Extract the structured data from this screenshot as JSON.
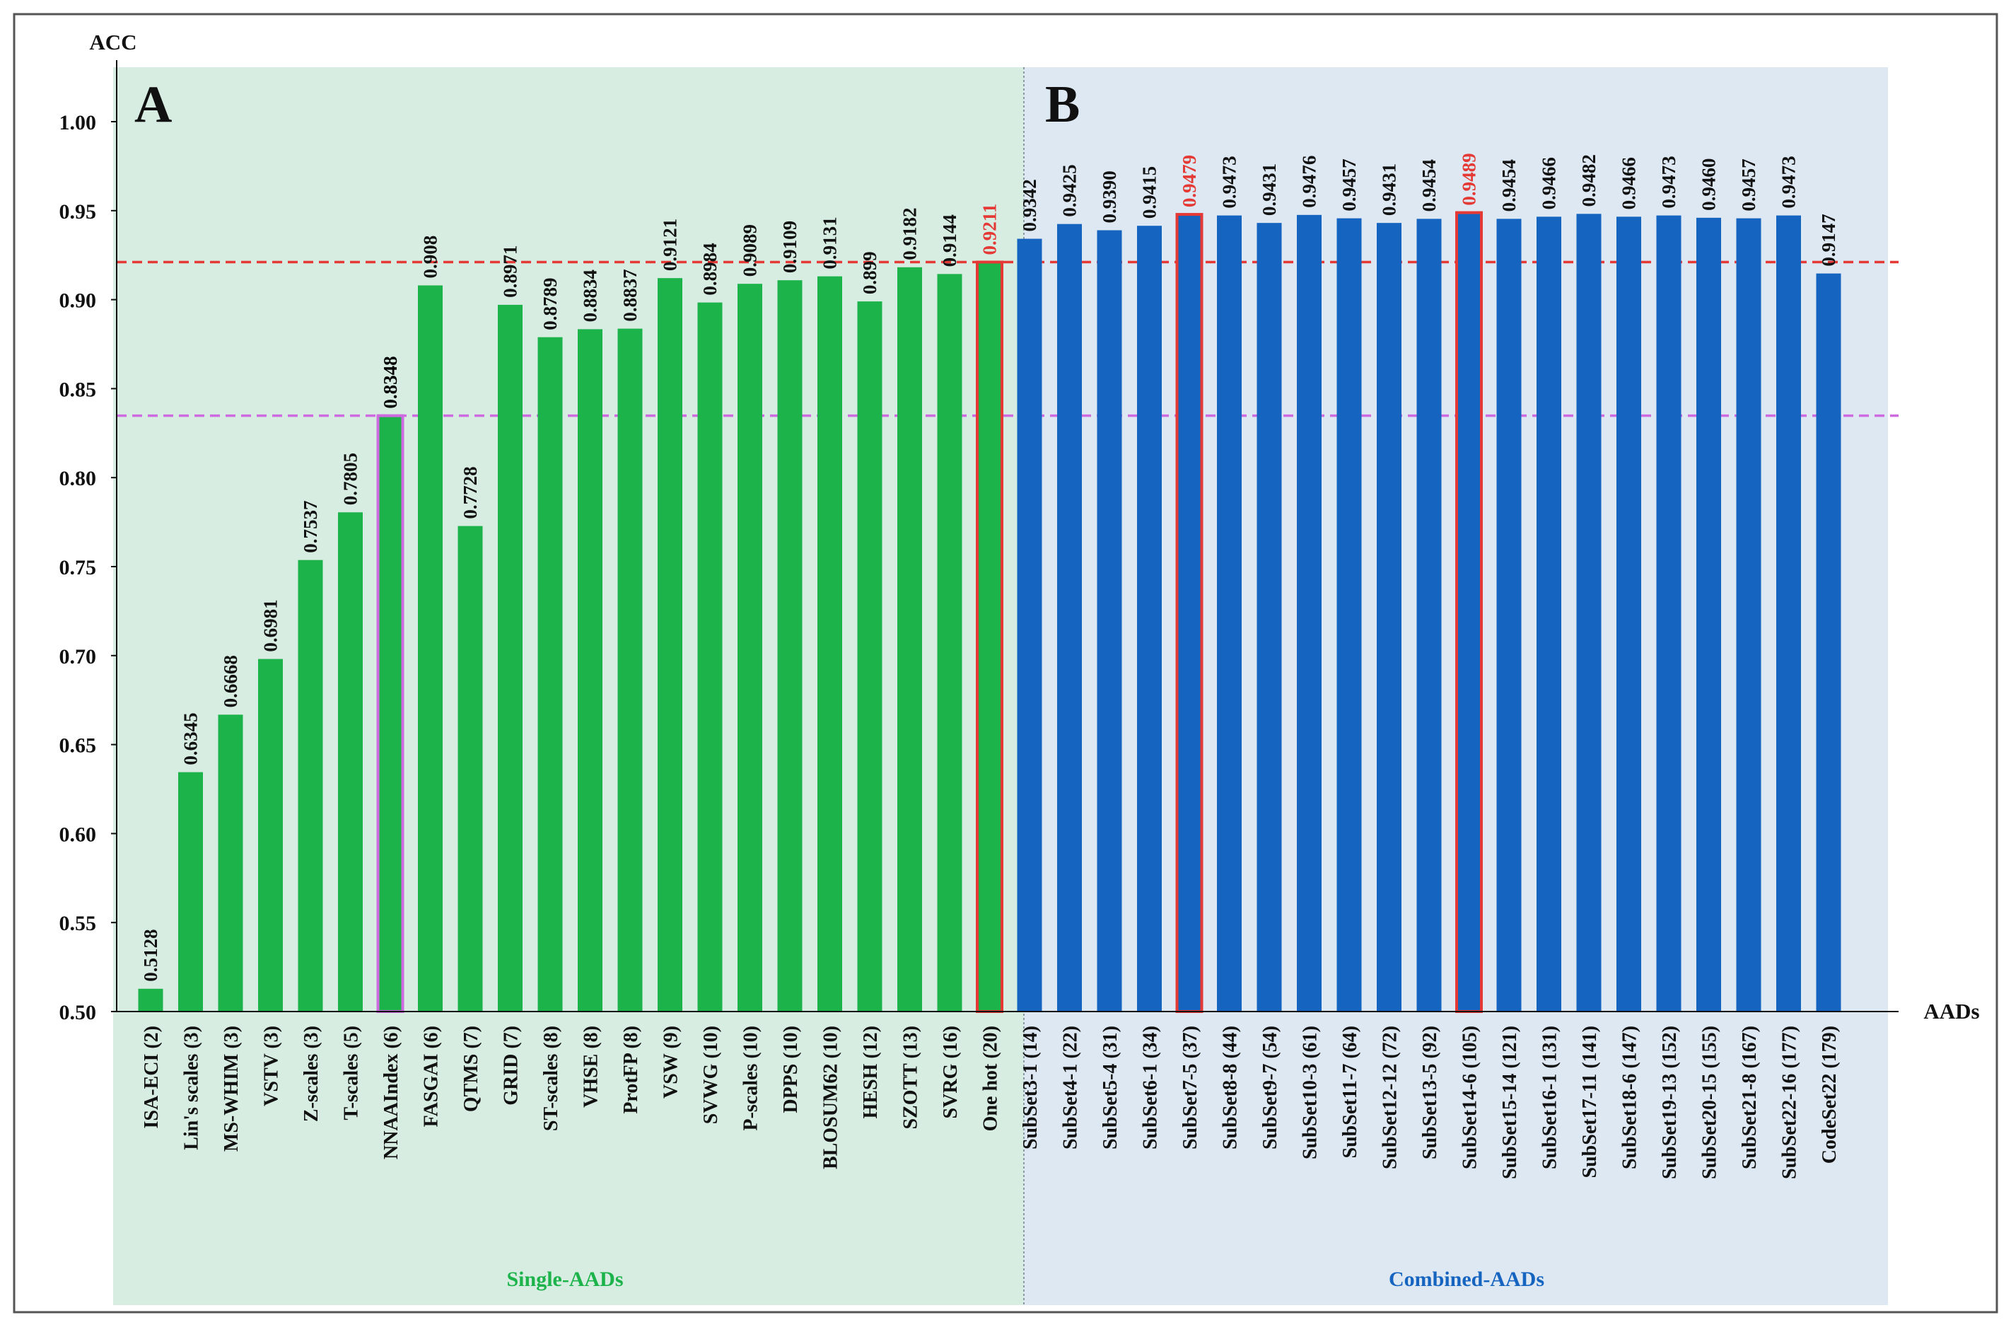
{
  "chart_data": {
    "type": "bar",
    "ylabel": "ACC",
    "xlabel": "AADs",
    "ylim": [
      0.5,
      1.02
    ],
    "yticks": [
      "0.50",
      "0.55",
      "0.60",
      "0.65",
      "0.70",
      "0.75",
      "0.80",
      "0.85",
      "0.90",
      "0.95",
      "1.00"
    ],
    "grid": false,
    "panels": [
      {
        "letter": "A",
        "group_label": "Single-AADs",
        "bar_color": "#1db34b",
        "bg_color": "#d7ede2",
        "label_color": "#1db34b"
      },
      {
        "letter": "B",
        "group_label": "Combined-AADs",
        "bar_color": "#1565c0",
        "bg_color": "#dde8f3",
        "label_color": "#1565c0"
      }
    ],
    "reference_lines": [
      {
        "name": "one-hot-reference",
        "value": 0.9211,
        "color": "#e53935"
      },
      {
        "name": "nnaaindex-reference",
        "value": 0.8348,
        "color": "#cf6be0"
      }
    ],
    "categories": [
      "ISA-ECI (2)",
      "Lin's scales (3)",
      "MS-WHIM (3)",
      "VSTV (3)",
      "Z-scales (3)",
      "T-scales (5)",
      "NNAAIndex (6)",
      "FASGAI (6)",
      "QTMS (7)",
      "GRID (7)",
      "ST-scales (8)",
      "VHSE (8)",
      "ProtFP (8)",
      "VSW (9)",
      "SVWG (10)",
      "P-scales (10)",
      "DPPS (10)",
      "BLOSUM62 (10)",
      "HESH (12)",
      "SZOTT (13)",
      "SVRG (16)",
      "One hot (20)",
      "SubSet3-1 (14)",
      "SubSet4-1 (22)",
      "SubSet5-4 (31)",
      "SubSet6-1 (34)",
      "SubSet7-5 (37)",
      "SubSet8-8 (44)",
      "SubSet9-7 (54)",
      "SubSet10-3 (61)",
      "SubSet11-7 (64)",
      "SubSet12-12 (72)",
      "SubSet13-5 (92)",
      "SubSet14-6 (105)",
      "SubSet15-14 (121)",
      "SubSet16-1 (131)",
      "SubSet17-11 (141)",
      "SubSet18-6 (147)",
      "SubSet19-13 (152)",
      "SubSet20-15 (155)",
      "SubSet21-8 (167)",
      "SubSet22-16 (177)",
      "CodeSet22 (179)"
    ],
    "value_labels": [
      "0.5128",
      "0.6345",
      "0.6668",
      "0.6981",
      "0.7537",
      "0.7805",
      "0.8348",
      "0.908",
      "0.7728",
      "0.8971",
      "0.8789",
      "0.8834",
      "0.8837",
      "0.9121",
      "0.8984",
      "0.9089",
      "0.9109",
      "0.9131",
      "0.899",
      "0.9182",
      "0.9144",
      "0.9211",
      "0.9342",
      "0.9425",
      "0.9390",
      "0.9415",
      "0.9479",
      "0.9473",
      "0.9431",
      "0.9476",
      "0.9457",
      "0.9431",
      "0.9454",
      "0.9489",
      "0.9454",
      "0.9466",
      "0.9482",
      "0.9466",
      "0.9473",
      "0.9460",
      "0.9457",
      "0.9473",
      "0.9147"
    ],
    "values": [
      0.5128,
      0.6345,
      0.6668,
      0.6981,
      0.7537,
      0.7805,
      0.8348,
      0.908,
      0.7728,
      0.8971,
      0.8789,
      0.8834,
      0.8837,
      0.9121,
      0.8984,
      0.9089,
      0.9109,
      0.9131,
      0.899,
      0.9182,
      0.9144,
      0.9211,
      0.9342,
      0.9425,
      0.939,
      0.9415,
      0.9479,
      0.9473,
      0.9431,
      0.9476,
      0.9457,
      0.9431,
      0.9454,
      0.9489,
      0.9454,
      0.9466,
      0.9482,
      0.9466,
      0.9473,
      0.946,
      0.9457,
      0.9473,
      0.9147
    ],
    "panel_of_bar": [
      0,
      0,
      0,
      0,
      0,
      0,
      0,
      0,
      0,
      0,
      0,
      0,
      0,
      0,
      0,
      0,
      0,
      0,
      0,
      0,
      0,
      0,
      1,
      1,
      1,
      1,
      1,
      1,
      1,
      1,
      1,
      1,
      1,
      1,
      1,
      1,
      1,
      1,
      1,
      1,
      1,
      1,
      1
    ],
    "highlighted_bars": [
      {
        "index": 6,
        "outline_color": "#cf6be0",
        "label_color": "#000000"
      },
      {
        "index": 21,
        "outline_color": "#e53935",
        "label_color": "#e53935"
      },
      {
        "index": 26,
        "outline_color": "#e53935",
        "label_color": "#e53935"
      },
      {
        "index": 33,
        "outline_color": "#e53935",
        "label_color": "#e53935"
      }
    ]
  }
}
